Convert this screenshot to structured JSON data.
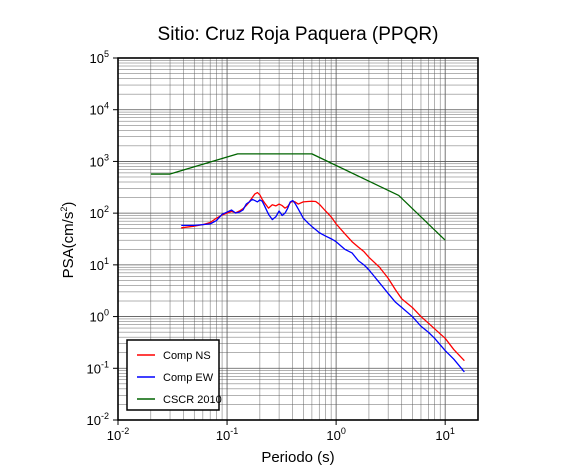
{
  "chart_data": {
    "type": "line",
    "title": "Sitio: Cruz Roja Paquera (PPQR)",
    "xlabel": "Periodo (s)",
    "ylabel_base": "PSA(cm/s",
    "ylabel_sup": "2",
    "ylabel_end": ")",
    "x_scale": "log",
    "y_scale": "log",
    "xlim": [
      0.01,
      20
    ],
    "ylim": [
      0.01,
      100000
    ],
    "grid": true,
    "legend_position": "bottom-left",
    "x_ticks": [
      {
        "value": 0.01,
        "base": "10",
        "exp": "-2"
      },
      {
        "value": 0.1,
        "base": "10",
        "exp": "-1"
      },
      {
        "value": 1,
        "base": "10",
        "exp": "0"
      },
      {
        "value": 10,
        "base": "10",
        "exp": "1"
      }
    ],
    "y_ticks": [
      {
        "value": 0.01,
        "base": "10",
        "exp": "-2"
      },
      {
        "value": 0.1,
        "base": "10",
        "exp": "-1"
      },
      {
        "value": 1,
        "base": "10",
        "exp": "0"
      },
      {
        "value": 10,
        "base": "10",
        "exp": "1"
      },
      {
        "value": 100,
        "base": "10",
        "exp": "2"
      },
      {
        "value": 1000,
        "base": "10",
        "exp": "3"
      },
      {
        "value": 10000,
        "base": "10",
        "exp": "4"
      },
      {
        "value": 100000,
        "base": "10",
        "exp": "5"
      }
    ],
    "series": [
      {
        "name": "Comp NS",
        "color": "#ff0000",
        "points": [
          [
            0.038,
            52
          ],
          [
            0.05,
            56
          ],
          [
            0.06,
            60
          ],
          [
            0.07,
            66
          ],
          [
            0.08,
            80
          ],
          [
            0.09,
            92
          ],
          [
            0.1,
            100
          ],
          [
            0.11,
            108
          ],
          [
            0.12,
            102
          ],
          [
            0.13,
            110
          ],
          [
            0.14,
            122
          ],
          [
            0.15,
            140
          ],
          [
            0.16,
            165
          ],
          [
            0.17,
            200
          ],
          [
            0.18,
            235
          ],
          [
            0.19,
            250
          ],
          [
            0.2,
            225
          ],
          [
            0.21,
            185
          ],
          [
            0.22,
            160
          ],
          [
            0.24,
            125
          ],
          [
            0.26,
            145
          ],
          [
            0.28,
            138
          ],
          [
            0.3,
            150
          ],
          [
            0.32,
            140
          ],
          [
            0.34,
            125
          ],
          [
            0.36,
            135
          ],
          [
            0.38,
            160
          ],
          [
            0.4,
            170
          ],
          [
            0.42,
            165
          ],
          [
            0.45,
            150
          ],
          [
            0.5,
            165
          ],
          [
            0.55,
            168
          ],
          [
            0.6,
            170
          ],
          [
            0.65,
            168
          ],
          [
            0.7,
            150
          ],
          [
            0.8,
            110
          ],
          [
            0.9,
            85
          ],
          [
            1.0,
            62
          ],
          [
            1.2,
            40
          ],
          [
            1.4,
            28
          ],
          [
            1.6,
            22
          ],
          [
            1.8,
            18
          ],
          [
            2.0,
            14
          ],
          [
            2.5,
            9
          ],
          [
            3.0,
            5.5
          ],
          [
            3.5,
            3.3
          ],
          [
            4.0,
            2.2
          ],
          [
            5.0,
            1.5
          ],
          [
            6.0,
            1.0
          ],
          [
            7.0,
            0.75
          ],
          [
            8.0,
            0.58
          ],
          [
            10.0,
            0.38
          ],
          [
            12.0,
            0.23
          ],
          [
            15.0,
            0.14
          ]
        ]
      },
      {
        "name": "Comp EW",
        "color": "#0000ff",
        "points": [
          [
            0.038,
            58
          ],
          [
            0.05,
            58
          ],
          [
            0.06,
            60
          ],
          [
            0.07,
            62
          ],
          [
            0.08,
            72
          ],
          [
            0.09,
            95
          ],
          [
            0.1,
            105
          ],
          [
            0.11,
            115
          ],
          [
            0.12,
            100
          ],
          [
            0.13,
            105
          ],
          [
            0.14,
            115
          ],
          [
            0.15,
            150
          ],
          [
            0.16,
            165
          ],
          [
            0.17,
            185
          ],
          [
            0.18,
            175
          ],
          [
            0.19,
            165
          ],
          [
            0.2,
            180
          ],
          [
            0.21,
            170
          ],
          [
            0.22,
            140
          ],
          [
            0.24,
            95
          ],
          [
            0.26,
            75
          ],
          [
            0.28,
            85
          ],
          [
            0.3,
            110
          ],
          [
            0.32,
            90
          ],
          [
            0.34,
            100
          ],
          [
            0.36,
            125
          ],
          [
            0.38,
            165
          ],
          [
            0.4,
            175
          ],
          [
            0.42,
            155
          ],
          [
            0.45,
            120
          ],
          [
            0.5,
            80
          ],
          [
            0.55,
            65
          ],
          [
            0.6,
            55
          ],
          [
            0.65,
            48
          ],
          [
            0.7,
            42
          ],
          [
            0.8,
            36
          ],
          [
            0.9,
            32
          ],
          [
            1.0,
            28
          ],
          [
            1.2,
            20
          ],
          [
            1.4,
            17
          ],
          [
            1.6,
            12
          ],
          [
            1.8,
            10
          ],
          [
            2.0,
            8
          ],
          [
            2.5,
            4.5
          ],
          [
            3.0,
            2.8
          ],
          [
            3.5,
            1.9
          ],
          [
            4.0,
            1.5
          ],
          [
            5.0,
            1.0
          ],
          [
            6.0,
            0.65
          ],
          [
            7.0,
            0.5
          ],
          [
            8.0,
            0.38
          ],
          [
            10.0,
            0.22
          ],
          [
            12.0,
            0.15
          ],
          [
            15.0,
            0.085
          ]
        ]
      },
      {
        "name": "CSCR 2010",
        "color": "#006400",
        "points": [
          [
            0.02,
            570
          ],
          [
            0.03,
            570
          ],
          [
            0.125,
            1400
          ],
          [
            0.6,
            1400
          ],
          [
            3.75,
            220
          ],
          [
            10,
            30
          ]
        ]
      }
    ]
  }
}
